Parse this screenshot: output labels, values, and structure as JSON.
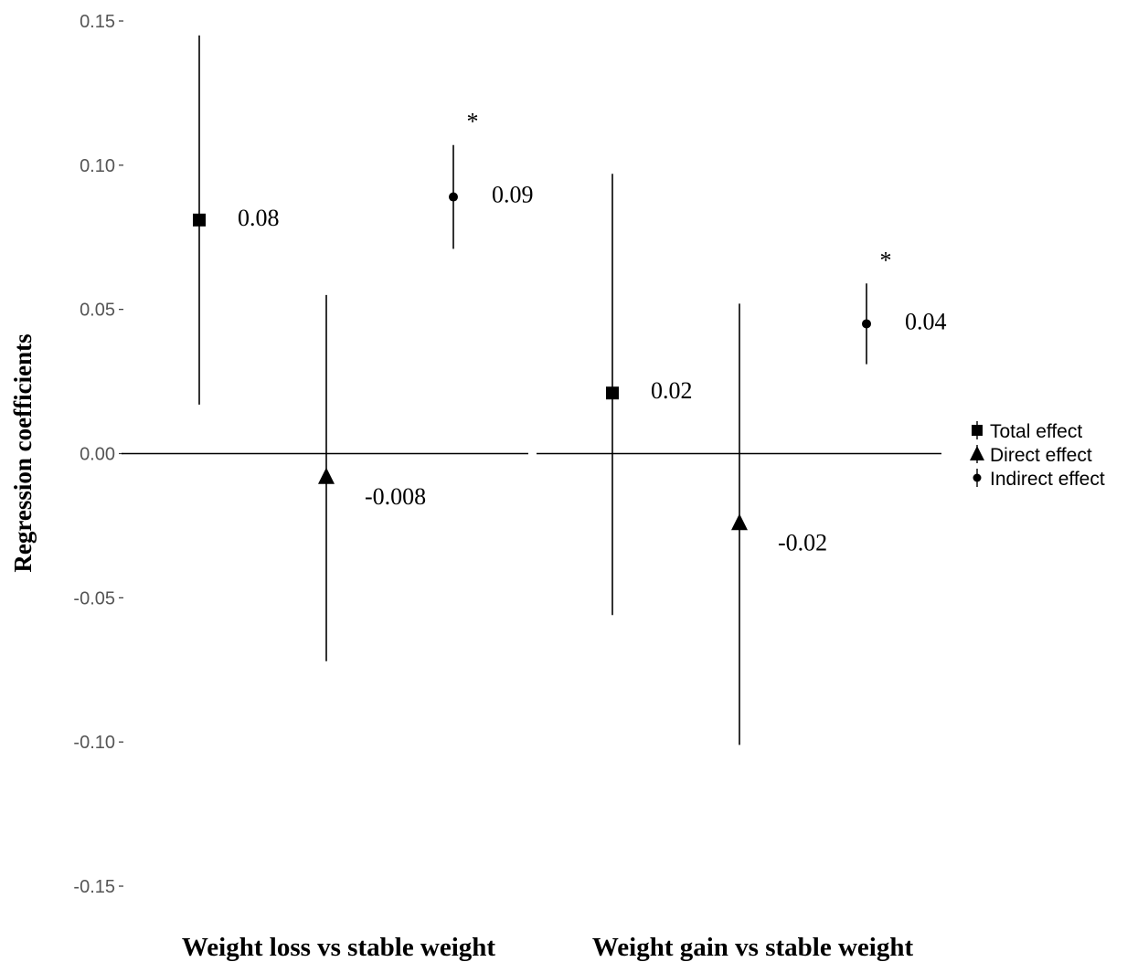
{
  "chart_data": {
    "type": "scatter",
    "subtype": "point-range",
    "ylabel": "Regression coefficients",
    "ylim": [
      -0.15,
      0.15
    ],
    "yticks": [
      0.15,
      0.1,
      0.05,
      0.0,
      -0.05,
      -0.1,
      -0.15
    ],
    "ytick_labels": [
      "0.15",
      "0.10",
      "0.05",
      "0.00",
      "-0.05",
      "-0.10",
      "-0.15"
    ],
    "grid": false,
    "legend_position": "right",
    "legend": [
      {
        "name": "Total effect",
        "marker": "square"
      },
      {
        "name": "Direct effect",
        "marker": "triangle"
      },
      {
        "name": "Indirect effect",
        "marker": "circle"
      }
    ],
    "panels": [
      {
        "title": "Weight loss vs stable weight",
        "points": [
          {
            "effect": "Total effect",
            "marker": "square",
            "value": 0.081,
            "lower": 0.017,
            "upper": 0.145,
            "label": "0.08",
            "significant": false
          },
          {
            "effect": "Direct effect",
            "marker": "triangle",
            "value": -0.008,
            "lower": -0.072,
            "upper": 0.055,
            "label": "-0.008",
            "significant": false
          },
          {
            "effect": "Indirect effect",
            "marker": "circle",
            "value": 0.089,
            "lower": 0.071,
            "upper": 0.107,
            "label": "0.09",
            "significant": true
          }
        ]
      },
      {
        "title": "Weight gain vs stable weight",
        "points": [
          {
            "effect": "Total effect",
            "marker": "square",
            "value": 0.021,
            "lower": -0.056,
            "upper": 0.097,
            "label": "0.02",
            "significant": false
          },
          {
            "effect": "Direct effect",
            "marker": "triangle",
            "value": -0.024,
            "lower": -0.101,
            "upper": 0.052,
            "label": "-0.02",
            "significant": false
          },
          {
            "effect": "Indirect effect",
            "marker": "circle",
            "value": 0.045,
            "lower": 0.031,
            "upper": 0.059,
            "label": "0.04",
            "significant": true
          }
        ]
      }
    ],
    "significance_marker": "*"
  }
}
